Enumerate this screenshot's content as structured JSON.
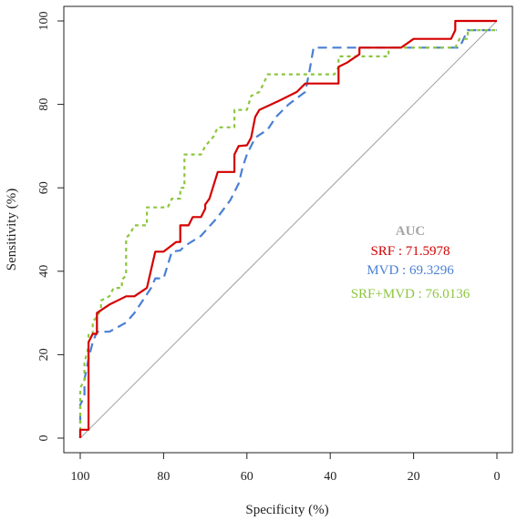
{
  "chart_data": {
    "type": "line",
    "xlabel": "Specificity (%)",
    "ylabel": "Sensitivity (%)",
    "xlim": [
      100,
      0
    ],
    "ylim": [
      0,
      100
    ],
    "x_ticks": [
      "100",
      "80",
      "60",
      "40",
      "20",
      "0"
    ],
    "y_ticks": [
      "0",
      "20",
      "40",
      "60",
      "80",
      "100"
    ],
    "grid": false,
    "legend_title": "AUC",
    "legend_title_color": "#a6a6a6",
    "legend_placement": "center-right",
    "reference_line": {
      "from": [
        100,
        0
      ],
      "to": [
        0,
        100
      ],
      "color": "#a0a0a0"
    },
    "series": [
      {
        "name": "SRF",
        "legend_label": "SRF : 71.5978",
        "auc": 71.5978,
        "color": "#d40000",
        "dash": "solid",
        "points": [
          [
            100,
            0
          ],
          [
            100,
            2
          ],
          [
            98,
            2
          ],
          [
            98,
            23
          ],
          [
            97,
            25
          ],
          [
            96,
            25
          ],
          [
            96,
            30
          ],
          [
            93,
            32
          ],
          [
            89,
            34
          ],
          [
            87,
            34
          ],
          [
            84,
            36
          ],
          [
            82,
            44.7
          ],
          [
            80,
            44.7
          ],
          [
            77,
            47
          ],
          [
            76,
            47
          ],
          [
            76,
            51
          ],
          [
            74,
            51
          ],
          [
            73,
            53
          ],
          [
            71,
            53
          ],
          [
            70,
            55
          ],
          [
            70,
            56
          ],
          [
            69,
            57.4
          ],
          [
            67,
            63.8
          ],
          [
            63,
            63.8
          ],
          [
            63,
            68
          ],
          [
            62,
            70
          ],
          [
            60,
            70.2
          ],
          [
            59,
            72
          ],
          [
            58,
            77
          ],
          [
            57,
            78.7
          ],
          [
            52,
            81
          ],
          [
            48,
            83
          ],
          [
            46,
            85
          ],
          [
            38,
            85
          ],
          [
            38,
            89
          ],
          [
            36,
            90
          ],
          [
            33,
            92
          ],
          [
            33,
            93.6
          ],
          [
            23,
            93.6
          ],
          [
            20,
            95.7
          ],
          [
            11,
            95.7
          ],
          [
            10,
            97.8
          ],
          [
            10,
            100
          ],
          [
            0,
            100
          ]
        ]
      },
      {
        "name": "MVD",
        "legend_label": "MVD : 69.3296",
        "auc": 69.3296,
        "color": "#4a7fd4",
        "dash": "10,6",
        "points": [
          [
            100,
            0
          ],
          [
            100,
            8
          ],
          [
            99,
            10
          ],
          [
            99,
            14
          ],
          [
            98,
            19
          ],
          [
            97,
            23
          ],
          [
            96,
            25.5
          ],
          [
            93,
            25.5
          ],
          [
            91,
            26.6
          ],
          [
            89,
            27.7
          ],
          [
            87,
            30
          ],
          [
            85,
            33
          ],
          [
            83,
            36
          ],
          [
            82,
            38.3
          ],
          [
            80,
            38.3
          ],
          [
            78,
            44.7
          ],
          [
            76,
            45
          ],
          [
            75,
            46
          ],
          [
            71,
            48.5
          ],
          [
            67,
            53
          ],
          [
            64,
            57
          ],
          [
            62,
            61
          ],
          [
            61,
            65
          ],
          [
            60,
            68
          ],
          [
            58,
            72
          ],
          [
            55,
            74
          ],
          [
            53,
            77
          ],
          [
            50,
            80
          ],
          [
            46,
            83
          ],
          [
            45,
            88
          ],
          [
            44,
            93.6
          ],
          [
            30,
            93.6
          ],
          [
            9,
            93.6
          ],
          [
            7,
            97.8
          ],
          [
            0,
            97.8
          ]
        ]
      },
      {
        "name": "SRF+MVD",
        "legend_label": "SRF+MVD : 76.0136",
        "auc": 76.0136,
        "color": "#8cc63e",
        "dash": "4,4",
        "points": [
          [
            100,
            0
          ],
          [
            100,
            12
          ],
          [
            99,
            14
          ],
          [
            99,
            18
          ],
          [
            98,
            22
          ],
          [
            98,
            25
          ],
          [
            97,
            25
          ],
          [
            97,
            28
          ],
          [
            96,
            29
          ],
          [
            95,
            31
          ],
          [
            95,
            33
          ],
          [
            93,
            34
          ],
          [
            92,
            36
          ],
          [
            90,
            36
          ],
          [
            90,
            38
          ],
          [
            89,
            39
          ],
          [
            89,
            48
          ],
          [
            88,
            49
          ],
          [
            87,
            51
          ],
          [
            84,
            51
          ],
          [
            84,
            55.3
          ],
          [
            79,
            55.3
          ],
          [
            78,
            57.4
          ],
          [
            76,
            57.4
          ],
          [
            76,
            60
          ],
          [
            75,
            60
          ],
          [
            75,
            68
          ],
          [
            71,
            68
          ],
          [
            70,
            70
          ],
          [
            68,
            72.3
          ],
          [
            67,
            74.5
          ],
          [
            63,
            74.5
          ],
          [
            63,
            78.7
          ],
          [
            60,
            78.7
          ],
          [
            59,
            82
          ],
          [
            57,
            83
          ],
          [
            56,
            85
          ],
          [
            55,
            87.2
          ],
          [
            43,
            87.2
          ],
          [
            39,
            87.2
          ],
          [
            38,
            89
          ],
          [
            38,
            91.5
          ],
          [
            26,
            91.5
          ],
          [
            26,
            93.6
          ],
          [
            10,
            93.6
          ],
          [
            9,
            95.7
          ],
          [
            7,
            95.7
          ],
          [
            7,
            97.8
          ],
          [
            0,
            97.8
          ]
        ]
      }
    ]
  }
}
